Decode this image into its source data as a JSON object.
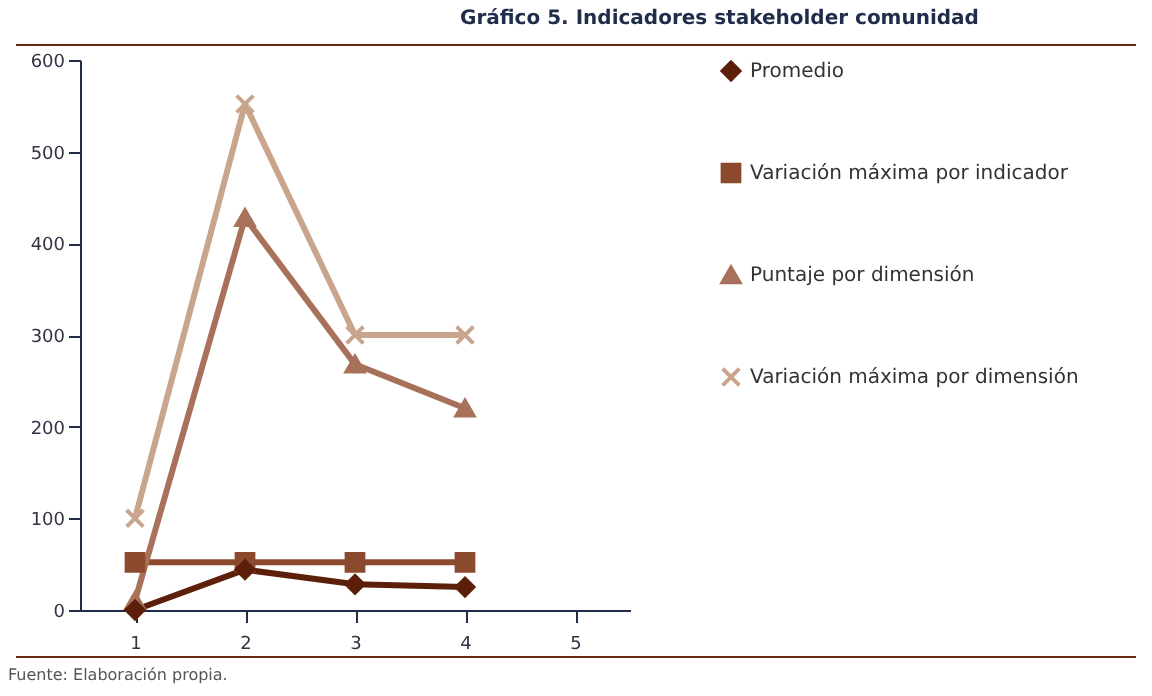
{
  "chart_data": {
    "type": "line",
    "title": "Gráfico 5. Indicadores stakeholder comunidad",
    "categories": [
      "1",
      "2",
      "3",
      "4",
      "5"
    ],
    "series": [
      {
        "name": "Promedio",
        "color": "#5c1f0a",
        "marker": "diamond",
        "values": [
          0,
          44,
          28,
          25,
          null
        ]
      },
      {
        "name": "Variación máxima por indicador",
        "color": "#8b4a2e",
        "marker": "square",
        "values": [
          52,
          52,
          52,
          52,
          null
        ]
      },
      {
        "name": "Puntaje por dimensión",
        "color": "#a8725a",
        "marker": "triangle",
        "values": [
          10,
          428,
          268,
          220,
          null
        ]
      },
      {
        "name": "Variación máxima por dimensión",
        "color": "#c9a58e",
        "marker": "cross",
        "values": [
          100,
          552,
          300,
          300,
          null
        ]
      }
    ],
    "ylim": [
      0,
      600
    ],
    "yticks": [
      0,
      100,
      200,
      300,
      400,
      500,
      600
    ],
    "grid": false,
    "legend": "right",
    "line_style": "solid",
    "annotations": [
      "Fuente: Elaboración propia."
    ]
  }
}
